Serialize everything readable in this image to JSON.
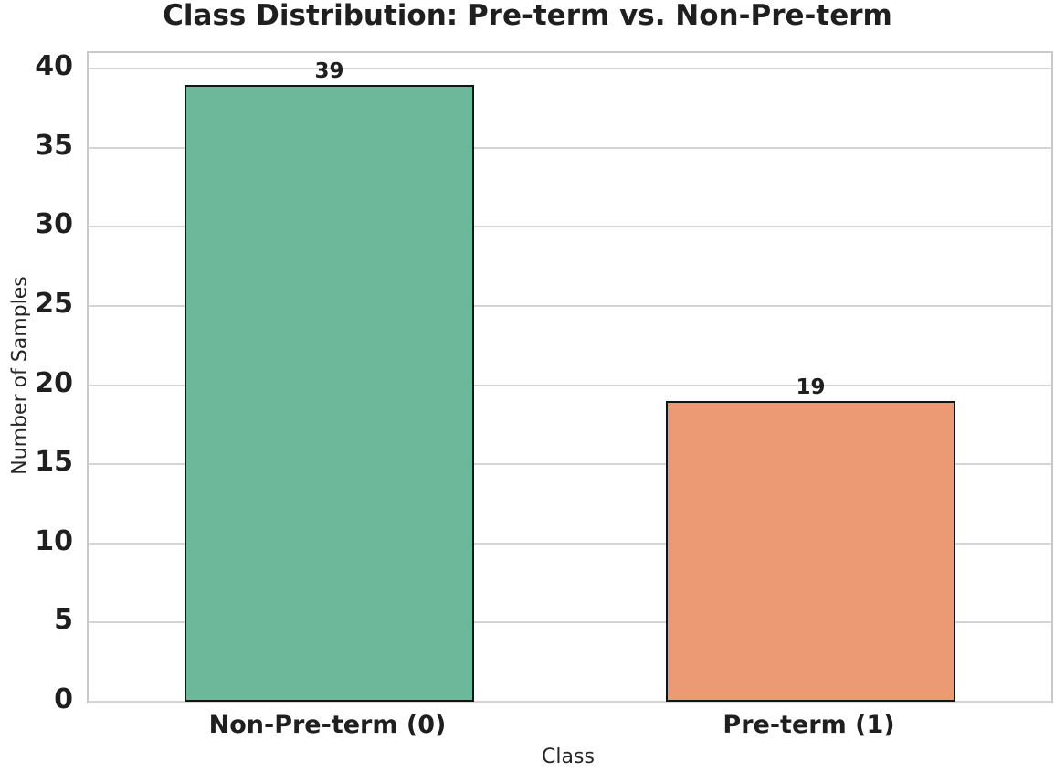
{
  "chart_data": {
    "type": "bar",
    "title": "Class Distribution: Pre-term vs. Non-Pre-term",
    "categories": [
      "Non-Pre-term (0)",
      "Pre-term (1)"
    ],
    "values": [
      39,
      19
    ],
    "value_labels": [
      "39",
      "19"
    ],
    "xlabel": "Class",
    "ylabel": "Number of Samples",
    "ylim": [
      0,
      41
    ],
    "yticks": [
      0,
      5,
      10,
      15,
      20,
      25,
      30,
      35,
      40
    ],
    "grid": "horizontal-only",
    "legend": "none",
    "bar_width_fraction": 0.6,
    "colors": {
      "bar_fills": [
        "#6db89b",
        "#ec9a74"
      ],
      "bar_edge": "#141414",
      "grid_line": "#d5d5d5",
      "plot_border": "#c9c9c9",
      "text": "#1f1f1f",
      "background": "#ffffff"
    }
  }
}
